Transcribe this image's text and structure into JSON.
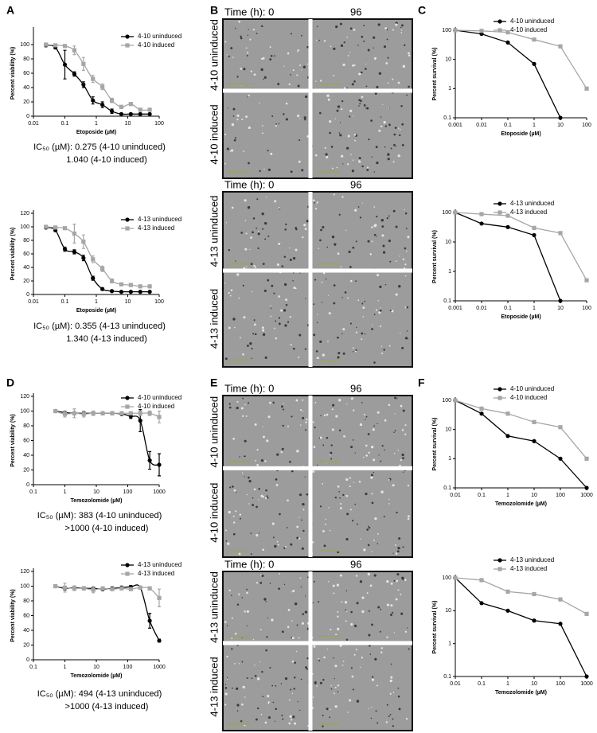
{
  "panels": [
    "A",
    "B",
    "C",
    "D",
    "E",
    "F"
  ],
  "micrographs": [
    {
      "time_label": "Time (h): 0",
      "end_label": "96",
      "top_label": "4-10 uninduced",
      "bottom_label": "4-10 induced"
    },
    {
      "time_label": "Time (h): 0",
      "end_label": "96",
      "top_label": "4-13 uninduced",
      "bottom_label": "4-13 induced"
    },
    {
      "time_label": "Time (h): 0",
      "end_label": "96",
      "top_label": "4-10 uninduced",
      "bottom_label": "4-10 induced"
    },
    {
      "time_label": "Time (h): 0",
      "end_label": "96",
      "top_label": "4-13 uninduced",
      "bottom_label": "4-13 induced"
    }
  ],
  "chart_data": [
    {
      "type": "scatter",
      "x_label": "Etoposide (µM)",
      "y_label": "Percent viability (%)",
      "log_x": true,
      "xlim": [
        0.01,
        100
      ],
      "xticks": [
        0.01,
        0.1,
        1,
        10,
        100
      ],
      "ylim": [
        0,
        120
      ],
      "yticks": [
        0,
        20,
        40,
        60,
        80,
        100
      ],
      "annotation": [
        "IC₅₀ (µM): 0.275 (4-10 uninduced)",
        "1.040 (4-10 induced)"
      ],
      "series": [
        {
          "name": "4-10 uninduced",
          "color": "#000000",
          "x": [
            0.025,
            0.05,
            0.1,
            0.2,
            0.39,
            0.78,
            1.56,
            3.13,
            6.25,
            12.5,
            25,
            50
          ],
          "values": [
            99,
            96,
            72,
            59,
            44,
            22,
            16,
            7,
            3,
            3,
            3,
            3
          ],
          "errors": [
            2,
            2,
            20,
            3,
            4,
            5,
            4,
            3,
            1,
            1,
            1,
            1
          ]
        },
        {
          "name": "4-10 induced",
          "color": "#a6a6a6",
          "x": [
            0.025,
            0.05,
            0.1,
            0.2,
            0.39,
            0.78,
            1.56,
            3.13,
            6.25,
            12.5,
            25,
            50
          ],
          "values": [
            100,
            99,
            98,
            92,
            73,
            52,
            41,
            22,
            13,
            17,
            9,
            9
          ],
          "errors": [
            2,
            2,
            2,
            6,
            9,
            5,
            4,
            3,
            2,
            2,
            2,
            2
          ]
        }
      ]
    },
    {
      "type": "line",
      "x_label": "Etoposide (µM)",
      "y_label": "Percent survival (%)",
      "log_x": true,
      "log_y": true,
      "xlim": [
        0.001,
        100
      ],
      "xticks": [
        0.001,
        0.01,
        0.1,
        1,
        10,
        100
      ],
      "ylim": [
        0.1,
        100
      ],
      "yticks": [
        0.1,
        1,
        10,
        100
      ],
      "series": [
        {
          "name": "4-10 uninduced",
          "color": "#000000",
          "x": [
            0.001,
            0.01,
            0.1,
            1,
            10
          ],
          "values": [
            100,
            75,
            38,
            7,
            0.1
          ]
        },
        {
          "name": "4-10 induced",
          "color": "#a6a6a6",
          "x": [
            0.001,
            0.01,
            0.1,
            1,
            10,
            100
          ],
          "values": [
            100,
            95,
            85,
            48,
            28,
            1
          ]
        }
      ]
    },
    {
      "type": "scatter",
      "x_label": "Etoposide (µM)",
      "y_label": "Percent viability (%)",
      "log_x": true,
      "xlim": [
        0.01,
        100
      ],
      "xticks": [
        0.01,
        0.1,
        1,
        10,
        100
      ],
      "ylim": [
        0,
        120
      ],
      "yticks": [
        0,
        20,
        40,
        60,
        80,
        100,
        120
      ],
      "annotation": [
        "IC₅₀ (µM): 0.355 (4-13 uninduced)",
        "1.340 (4-13 induced)"
      ],
      "series": [
        {
          "name": "4-13 uninduced",
          "color": "#000000",
          "x": [
            0.025,
            0.05,
            0.1,
            0.2,
            0.39,
            0.78,
            1.56,
            3.13,
            6.25,
            12.5,
            25,
            50
          ],
          "values": [
            99,
            95,
            67,
            63,
            54,
            24,
            8,
            5,
            4,
            4,
            4,
            4
          ],
          "errors": [
            2,
            2,
            3,
            3,
            4,
            3,
            2,
            1,
            1,
            1,
            1,
            1
          ]
        },
        {
          "name": "4-13 induced",
          "color": "#a6a6a6",
          "x": [
            0.025,
            0.05,
            0.1,
            0.2,
            0.39,
            0.78,
            1.56,
            3.13,
            6.25,
            12.5,
            25,
            50
          ],
          "values": [
            100,
            99,
            98,
            90,
            78,
            52,
            38,
            20,
            15,
            14,
            12,
            12
          ],
          "errors": [
            2,
            2,
            2,
            14,
            10,
            5,
            4,
            3,
            2,
            2,
            2,
            2
          ]
        }
      ]
    },
    {
      "type": "line",
      "x_label": "Etoposide (µM)",
      "y_label": "Percent survival (%)",
      "log_x": true,
      "log_y": true,
      "xlim": [
        0.001,
        100
      ],
      "xticks": [
        0.001,
        0.01,
        0.1,
        1,
        10,
        100
      ],
      "ylim": [
        0.1,
        100
      ],
      "yticks": [
        0.1,
        1,
        10,
        100
      ],
      "series": [
        {
          "name": "4-13 uninduced",
          "color": "#000000",
          "x": [
            0.001,
            0.01,
            0.1,
            1,
            10
          ],
          "values": [
            100,
            42,
            32,
            17,
            0.1
          ]
        },
        {
          "name": "4-13 induced",
          "color": "#a6a6a6",
          "x": [
            0.001,
            0.01,
            0.1,
            1,
            10,
            100
          ],
          "values": [
            100,
            88,
            78,
            30,
            20,
            0.5
          ]
        }
      ]
    },
    {
      "type": "scatter",
      "x_label": "Temozolomide (µM)",
      "y_label": "Percent viability (%)",
      "log_x": true,
      "xlim": [
        0.1,
        1000
      ],
      "xticks": [
        0.1,
        1,
        10,
        100,
        1000
      ],
      "ylim": [
        0,
        120
      ],
      "yticks": [
        0,
        20,
        40,
        60,
        80,
        100,
        120
      ],
      "annotation": [
        "IC₅₀ (µM): 383 (4-10 uninduced)",
        ">1000 (4-10 induced)"
      ],
      "series": [
        {
          "name": "4-10 uninduced",
          "color": "#000000",
          "x": [
            0.5,
            1,
            2,
            4,
            8,
            16,
            32,
            64,
            125,
            250,
            500,
            1000
          ],
          "values": [
            100,
            98,
            97,
            97,
            97,
            97,
            97,
            96,
            93,
            87,
            33,
            27
          ],
          "errors": [
            2,
            2,
            2,
            2,
            2,
            2,
            2,
            2,
            3,
            15,
            12,
            15
          ]
        },
        {
          "name": "4-10 induced",
          "color": "#a6a6a6",
          "x": [
            0.5,
            1,
            2,
            4,
            8,
            16,
            32,
            64,
            125,
            250,
            500,
            1000
          ],
          "values": [
            100,
            96,
            97,
            96,
            97,
            97,
            97,
            97,
            97,
            97,
            97,
            92
          ],
          "errors": [
            2,
            4,
            6,
            4,
            3,
            2,
            2,
            2,
            2,
            3,
            3,
            8
          ]
        }
      ]
    },
    {
      "type": "line",
      "x_label": "Temozolomide (µM)",
      "y_label": "Percent survival (%)",
      "log_x": true,
      "log_y": true,
      "xlim": [
        0.01,
        1000
      ],
      "xticks": [
        0.01,
        0.1,
        1,
        10,
        100,
        1000
      ],
      "ylim": [
        0.1,
        100
      ],
      "yticks": [
        0.1,
        1,
        10,
        100
      ],
      "series": [
        {
          "name": "4-10 uninduced",
          "color": "#000000",
          "x": [
            0.01,
            0.1,
            1,
            10,
            100,
            1000
          ],
          "values": [
            100,
            35,
            6,
            4,
            1,
            0.1
          ]
        },
        {
          "name": "4-10 induced",
          "color": "#a6a6a6",
          "x": [
            0.01,
            0.1,
            1,
            10,
            100,
            1000
          ],
          "values": [
            100,
            52,
            35,
            18,
            12,
            1
          ]
        }
      ]
    },
    {
      "type": "scatter",
      "x_label": "Temozolomide (µM)",
      "y_label": "Percent viability (%)",
      "log_x": true,
      "xlim": [
        0.1,
        1000
      ],
      "xticks": [
        0.1,
        1,
        10,
        100,
        1000
      ],
      "ylim": [
        0,
        120
      ],
      "yticks": [
        0,
        20,
        40,
        60,
        80,
        100,
        120
      ],
      "annotation": [
        "IC₅₀ (µM): 494 (4-13 uninduced)",
        ">1000 (4-13 induced)"
      ],
      "series": [
        {
          "name": "4-13 uninduced",
          "color": "#000000",
          "x": [
            0.5,
            1,
            2,
            4,
            8,
            16,
            32,
            64,
            125,
            250,
            500,
            1000
          ],
          "values": [
            100,
            97,
            98,
            97,
            97,
            96,
            97,
            98,
            99,
            98,
            53,
            26
          ],
          "errors": [
            2,
            2,
            2,
            2,
            2,
            2,
            2,
            2,
            2,
            2,
            10,
            2
          ]
        },
        {
          "name": "4-13 induced",
          "color": "#a6a6a6",
          "x": [
            0.5,
            1,
            2,
            4,
            8,
            16,
            32,
            64,
            125,
            250,
            500,
            1000
          ],
          "values": [
            100,
            98,
            97,
            97,
            95,
            97,
            96,
            97,
            96,
            98,
            97,
            84
          ],
          "errors": [
            2,
            6,
            3,
            2,
            4,
            2,
            2,
            2,
            2,
            2,
            2,
            12
          ]
        }
      ]
    },
    {
      "type": "line",
      "x_label": "Temozolomide (µM)",
      "y_label": "Percent survival (%)",
      "log_x": true,
      "log_y": true,
      "xlim": [
        0.01,
        1000
      ],
      "xticks": [
        0.01,
        0.1,
        1,
        10,
        100,
        1000
      ],
      "ylim": [
        0.1,
        100
      ],
      "yticks": [
        0.1,
        1,
        10,
        100
      ],
      "series": [
        {
          "name": "4-13 uninduced",
          "color": "#000000",
          "x": [
            0.01,
            0.1,
            1,
            10,
            100,
            1000
          ],
          "values": [
            100,
            17,
            10,
            5,
            4,
            0.1
          ]
        },
        {
          "name": "4-13 induced",
          "color": "#a6a6a6",
          "x": [
            0.01,
            0.1,
            1,
            10,
            100,
            1000
          ],
          "values": [
            100,
            85,
            38,
            32,
            22,
            8
          ]
        }
      ]
    }
  ]
}
